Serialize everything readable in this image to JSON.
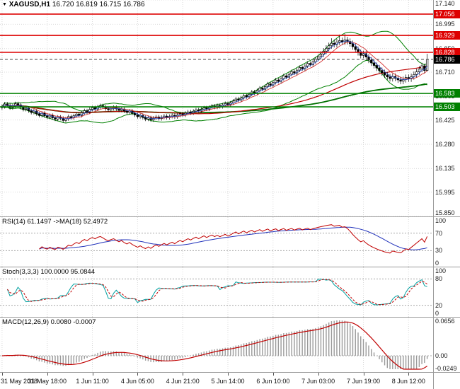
{
  "header": {
    "marker_icon": "▼",
    "symbol": "XAGUSD,H1",
    "quote": "16.720 16.819 16.715 16.786"
  },
  "panels": {
    "rsi_label": "RSI(14) 61.1497  ->MA(18) 52.4972",
    "stoch_label": "Stoch(3,3,3) 100.0000 95.0844",
    "macd_label": "MACD(12,26,9) 0.0080 -0.0007"
  },
  "chart_data": {
    "type": "candlestick",
    "symbol": "XAGUSD",
    "timeframe": "H1",
    "last_quote": {
      "open": 16.72,
      "high": 16.819,
      "low": 16.715,
      "close": 16.786
    },
    "price_axis": {
      "min": 15.85,
      "max": 17.14,
      "ticks": [
        17.14,
        16.995,
        16.85,
        16.71,
        16.565,
        16.425,
        16.28,
        16.135,
        15.995,
        15.85
      ]
    },
    "x_labels": [
      "31 May 2018",
      "31 May 18:00",
      "1 Jun 11:00",
      "4 Jun 05:00",
      "4 Jun 21:00",
      "5 Jun 14:00",
      "6 Jun 10:00",
      "7 Jun 03:00",
      "7 Jun 19:00",
      "8 Jun 12:00"
    ],
    "x_label_indices": [
      0,
      17,
      34,
      51,
      68,
      85,
      102,
      119,
      136,
      153
    ],
    "hlines": [
      {
        "price": 17.056,
        "label": "17.056",
        "color": "#dd0000",
        "style": "solid"
      },
      {
        "price": 16.929,
        "label": "16.929",
        "color": "#dd0000",
        "style": "solid"
      },
      {
        "price": 16.828,
        "label": "16.828",
        "color": "#dd0000",
        "style": "solid"
      },
      {
        "price": 16.786,
        "label": "16.786",
        "color": "#000000",
        "style": "bid"
      },
      {
        "price": 16.583,
        "label": "16.583",
        "color": "#008000",
        "style": "solid"
      },
      {
        "price": 16.503,
        "label": "16.503",
        "color": "#008000",
        "style": "solid"
      }
    ],
    "ohlc_format": [
      "open",
      "high",
      "low",
      "close"
    ],
    "candles": [
      [
        16.498,
        16.517,
        16.486,
        16.505
      ],
      [
        16.505,
        16.532,
        16.493,
        16.52
      ],
      [
        16.52,
        16.532,
        16.5,
        16.512
      ],
      [
        16.512,
        16.524,
        16.486,
        16.498
      ],
      [
        16.498,
        16.52,
        16.486,
        16.508
      ],
      [
        16.508,
        16.534,
        16.496,
        16.522
      ],
      [
        16.522,
        16.534,
        16.503,
        16.515
      ],
      [
        16.515,
        16.527,
        16.488,
        16.5
      ],
      [
        16.5,
        16.512,
        16.476,
        16.488
      ],
      [
        16.488,
        16.507,
        16.476,
        16.495
      ],
      [
        16.495,
        16.507,
        16.468,
        16.48
      ],
      [
        16.48,
        16.492,
        16.458,
        16.47
      ],
      [
        16.47,
        16.49,
        16.458,
        16.478
      ],
      [
        16.478,
        16.49,
        16.45,
        16.462
      ],
      [
        16.462,
        16.474,
        16.44,
        16.452
      ],
      [
        16.452,
        16.477,
        16.44,
        16.465
      ],
      [
        16.465,
        16.477,
        16.438,
        16.45
      ],
      [
        16.45,
        16.462,
        16.43,
        16.442
      ],
      [
        16.442,
        16.464,
        16.43,
        16.452
      ],
      [
        16.452,
        16.464,
        16.426,
        16.438
      ],
      [
        16.438,
        16.45,
        16.418,
        16.43
      ],
      [
        16.43,
        16.454,
        16.418,
        16.442
      ],
      [
        16.442,
        16.454,
        16.423,
        16.435
      ],
      [
        16.435,
        16.447,
        16.41,
        16.422
      ],
      [
        16.422,
        16.444,
        16.41,
        16.432
      ],
      [
        16.432,
        16.457,
        16.42,
        16.445
      ],
      [
        16.445,
        16.457,
        16.426,
        16.438
      ],
      [
        16.438,
        16.462,
        16.426,
        16.45
      ],
      [
        16.45,
        16.472,
        16.438,
        16.46
      ],
      [
        16.46,
        16.472,
        16.44,
        16.452
      ],
      [
        16.452,
        16.48,
        16.44,
        16.468
      ],
      [
        16.468,
        16.492,
        16.456,
        16.48
      ],
      [
        16.48,
        16.492,
        16.46,
        16.472
      ],
      [
        16.472,
        16.5,
        16.46,
        16.488
      ],
      [
        16.488,
        16.51,
        16.476,
        16.498
      ],
      [
        16.498,
        16.51,
        16.478,
        16.49
      ],
      [
        16.49,
        16.515,
        16.478,
        16.503
      ],
      [
        16.503,
        16.522,
        16.491,
        16.51
      ],
      [
        16.51,
        16.522,
        16.49,
        16.502
      ],
      [
        16.502,
        16.514,
        16.48,
        16.492
      ],
      [
        16.492,
        16.504,
        16.474,
        16.486
      ],
      [
        16.486,
        16.506,
        16.474,
        16.494
      ],
      [
        16.494,
        16.512,
        16.482,
        16.5
      ],
      [
        16.5,
        16.512,
        16.479,
        16.491
      ],
      [
        16.491,
        16.503,
        16.471,
        16.483
      ],
      [
        16.483,
        16.502,
        16.471,
        16.49
      ],
      [
        16.49,
        16.502,
        16.466,
        16.478
      ],
      [
        16.478,
        16.49,
        16.458,
        16.47
      ],
      [
        16.47,
        16.49,
        16.458,
        16.478
      ],
      [
        16.478,
        16.49,
        16.453,
        16.465
      ],
      [
        16.465,
        16.477,
        16.443,
        16.455
      ],
      [
        16.455,
        16.467,
        16.433,
        16.445
      ],
      [
        16.445,
        16.464,
        16.433,
        16.452
      ],
      [
        16.452,
        16.464,
        16.428,
        16.44
      ],
      [
        16.44,
        16.452,
        16.418,
        16.43
      ],
      [
        16.43,
        16.45,
        16.418,
        16.438
      ],
      [
        16.438,
        16.45,
        16.414,
        16.426
      ],
      [
        16.426,
        16.448,
        16.414,
        16.436
      ],
      [
        16.436,
        16.455,
        16.424,
        16.443
      ],
      [
        16.443,
        16.455,
        16.421,
        16.433
      ],
      [
        16.433,
        16.453,
        16.421,
        16.441
      ],
      [
        16.441,
        16.46,
        16.429,
        16.448
      ],
      [
        16.448,
        16.46,
        16.427,
        16.439
      ],
      [
        16.439,
        16.458,
        16.427,
        16.446
      ],
      [
        16.446,
        16.465,
        16.434,
        16.453
      ],
      [
        16.453,
        16.465,
        16.432,
        16.444
      ],
      [
        16.444,
        16.466,
        16.432,
        16.454
      ],
      [
        16.454,
        16.474,
        16.442,
        16.462
      ],
      [
        16.462,
        16.474,
        16.443,
        16.455
      ],
      [
        16.455,
        16.477,
        16.443,
        16.465
      ],
      [
        16.465,
        16.485,
        16.453,
        16.473
      ],
      [
        16.473,
        16.485,
        16.455,
        16.467
      ],
      [
        16.467,
        16.489,
        16.455,
        16.477
      ],
      [
        16.477,
        16.497,
        16.465,
        16.485
      ],
      [
        16.485,
        16.497,
        16.466,
        16.478
      ],
      [
        16.478,
        16.5,
        16.466,
        16.488
      ],
      [
        16.488,
        16.509,
        16.476,
        16.497
      ],
      [
        16.497,
        16.509,
        16.478,
        16.49
      ],
      [
        16.49,
        16.512,
        16.478,
        16.5
      ],
      [
        16.5,
        16.52,
        16.488,
        16.508
      ],
      [
        16.508,
        16.52,
        16.489,
        16.501
      ],
      [
        16.501,
        16.523,
        16.489,
        16.511
      ],
      [
        16.511,
        16.523,
        16.493,
        16.505
      ],
      [
        16.505,
        16.526,
        16.493,
        16.514
      ],
      [
        16.514,
        16.535,
        16.502,
        16.523
      ],
      [
        16.523,
        16.535,
        16.504,
        16.516
      ],
      [
        16.516,
        16.538,
        16.504,
        16.526
      ],
      [
        16.526,
        16.55,
        16.514,
        16.538
      ],
      [
        16.538,
        16.562,
        16.526,
        16.55
      ],
      [
        16.55,
        16.562,
        16.531,
        16.543
      ],
      [
        16.543,
        16.569,
        16.531,
        16.557
      ],
      [
        16.557,
        16.582,
        16.545,
        16.57
      ],
      [
        16.57,
        16.582,
        16.551,
        16.563
      ],
      [
        16.563,
        16.59,
        16.551,
        16.578
      ],
      [
        16.578,
        16.604,
        16.566,
        16.592
      ],
      [
        16.592,
        16.604,
        16.573,
        16.585
      ],
      [
        16.585,
        16.612,
        16.573,
        16.6
      ],
      [
        16.6,
        16.627,
        16.588,
        16.615
      ],
      [
        16.615,
        16.627,
        16.596,
        16.608
      ],
      [
        16.608,
        16.636,
        16.596,
        16.624
      ],
      [
        16.624,
        16.652,
        16.612,
        16.64
      ],
      [
        16.64,
        16.652,
        16.62,
        16.632
      ],
      [
        16.632,
        16.66,
        16.62,
        16.648
      ],
      [
        16.648,
        16.675,
        16.636,
        16.663
      ],
      [
        16.663,
        16.675,
        16.643,
        16.655
      ],
      [
        16.655,
        16.684,
        16.643,
        16.672
      ],
      [
        16.672,
        16.7,
        16.66,
        16.688
      ],
      [
        16.688,
        16.7,
        16.668,
        16.68
      ],
      [
        16.68,
        16.709,
        16.668,
        16.697
      ],
      [
        16.697,
        16.725,
        16.685,
        16.713
      ],
      [
        16.713,
        16.725,
        16.693,
        16.705
      ],
      [
        16.705,
        16.734,
        16.693,
        16.722
      ],
      [
        16.722,
        16.75,
        16.71,
        16.738
      ],
      [
        16.738,
        16.75,
        16.718,
        16.73
      ],
      [
        16.73,
        16.759,
        16.718,
        16.747
      ],
      [
        16.747,
        16.774,
        16.735,
        16.762
      ],
      [
        16.762,
        16.774,
        16.743,
        16.755
      ],
      [
        16.755,
        16.784,
        16.743,
        16.772
      ],
      [
        16.772,
        16.8,
        16.76,
        16.788
      ],
      [
        16.788,
        16.814,
        16.776,
        16.802
      ],
      [
        16.802,
        16.836,
        16.784,
        16.818
      ],
      [
        16.818,
        16.853,
        16.8,
        16.835
      ],
      [
        16.835,
        16.87,
        16.817,
        16.852
      ],
      [
        16.852,
        16.886,
        16.834,
        16.868
      ],
      [
        16.868,
        16.912,
        16.85,
        16.882
      ],
      [
        16.882,
        16.905,
        16.857,
        16.875
      ],
      [
        16.875,
        16.908,
        16.857,
        16.89
      ],
      [
        16.89,
        16.934,
        16.872,
        16.898
      ],
      [
        16.898,
        16.916,
        16.872,
        16.89
      ],
      [
        16.89,
        16.938,
        16.872,
        16.902
      ],
      [
        16.902,
        16.92,
        16.875,
        16.893
      ],
      [
        16.893,
        16.911,
        16.862,
        16.88
      ],
      [
        16.88,
        16.898,
        16.844,
        16.862
      ],
      [
        16.862,
        16.88,
        16.827,
        16.845
      ],
      [
        16.845,
        16.863,
        16.809,
        16.827
      ],
      [
        16.827,
        16.845,
        16.792,
        16.81
      ],
      [
        16.81,
        16.838,
        16.792,
        16.82
      ],
      [
        16.82,
        16.838,
        16.782,
        16.8
      ],
      [
        16.8,
        16.818,
        16.764,
        16.782
      ],
      [
        16.782,
        16.8,
        16.747,
        16.765
      ],
      [
        16.765,
        16.783,
        16.732,
        16.75
      ],
      [
        16.75,
        16.768,
        16.717,
        16.735
      ],
      [
        16.735,
        16.753,
        16.702,
        16.72
      ],
      [
        16.72,
        16.738,
        16.689,
        16.707
      ],
      [
        16.707,
        16.725,
        16.675,
        16.693
      ],
      [
        16.693,
        16.711,
        16.664,
        16.682
      ],
      [
        16.682,
        16.7,
        16.654,
        16.672
      ],
      [
        16.672,
        16.702,
        16.654,
        16.684
      ],
      [
        16.684,
        16.702,
        16.656,
        16.674
      ],
      [
        16.674,
        16.692,
        16.646,
        16.664
      ],
      [
        16.664,
        16.682,
        16.638,
        16.656
      ],
      [
        16.656,
        16.684,
        16.638,
        16.666
      ],
      [
        16.666,
        16.696,
        16.648,
        16.678
      ],
      [
        16.678,
        16.696,
        16.652,
        16.67
      ],
      [
        16.67,
        16.701,
        16.652,
        16.683
      ],
      [
        16.683,
        16.714,
        16.665,
        16.696
      ],
      [
        16.696,
        16.73,
        16.678,
        16.712
      ],
      [
        16.712,
        16.746,
        16.694,
        16.728
      ],
      [
        16.728,
        16.766,
        16.71,
        16.748
      ],
      [
        16.748,
        16.76,
        16.702,
        16.72
      ],
      [
        16.72,
        16.819,
        16.715,
        16.786
      ]
    ],
    "indicators": {
      "bollinger": {
        "period": 20,
        "deviation": 2
      },
      "ma_long_green_period": 110,
      "ma_long_red_period": 65,
      "ma_fast_red_period": 8,
      "ma_fast_blue_period": 4,
      "rsi": {
        "period": 14,
        "ma_period": 18,
        "value": "61.1497",
        "ma_value": "52.4972",
        "levels": [
          70,
          30
        ],
        "axis_ticks": [
          {
            "v": 100,
            "t": "100"
          },
          {
            "v": 70,
            "t": "70"
          },
          {
            "v": 30,
            "t": "30"
          },
          {
            "v": 0,
            "t": "0"
          }
        ]
      },
      "stoch": {
        "k": 3,
        "d": 3,
        "slowing": 3,
        "value": "100.0000",
        "signal_value": "95.0844",
        "levels": [
          80,
          20
        ],
        "axis_ticks": [
          {
            "v": 100,
            "t": "100"
          },
          {
            "v": 80,
            "t": "80"
          },
          {
            "v": 20,
            "t": "20"
          },
          {
            "v": 0,
            "t": "0"
          }
        ]
      },
      "macd": {
        "fast": 12,
        "slow": 26,
        "signal": 9,
        "value": "0.0080",
        "signal_value": "-0.0007",
        "axis_max": 0.0656,
        "axis_min": -0.0249,
        "axis_ticks": [
          {
            "v": 0.0656,
            "t": "0.0656"
          },
          {
            "v": 0,
            "t": "0.00"
          },
          {
            "v": -0.0249,
            "t": "-0.0249"
          }
        ]
      }
    },
    "colors": {
      "candle_up": "#ffffff",
      "candle_down": "#000000",
      "candle_outline": "#000000",
      "bollinger": "#008000",
      "ma_long_green": "#007000",
      "ma_long_red": "#c00000",
      "ma_fast_red": "#d02020",
      "ma_fast_blue": "#3050c8",
      "level_red": "#dd0000",
      "level_green": "#008000",
      "bid_line": "#444444",
      "rsi_line": "#c00000",
      "rsi_ma": "#2233bb",
      "stoch_k": "#00a0a0",
      "stoch_d": "#c00000",
      "macd_hist": "#9a9a9a",
      "macd_signal": "#c00000",
      "grid": "#d9d9d9",
      "level_dash": "#a8a8a8"
    }
  }
}
